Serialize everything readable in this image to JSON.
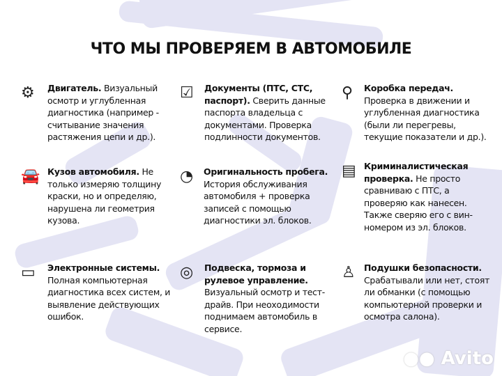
{
  "title": "ЧТО МЫ ПРОВЕРЯЕМ В АВТОМОБИЛЕ",
  "items": [
    {
      "icon": "engine-icon",
      "title": "Двигатель.",
      "text": " Визуальный осмотр и углубленная диагностика (например - считывание значения растяжения цепи и др.)."
    },
    {
      "icon": "checkbox-icon",
      "title": "Документы (ПТС, СТС, паспорт).",
      "text": " Сверить данные паспорта владельца с документами. Проверка подлинности документов."
    },
    {
      "icon": "gearbox-icon",
      "title": "Коробка передач.",
      "text": " Проверка в движении и углубленная диагностика (были ли перегревы, текущие показатели и др.)."
    },
    {
      "icon": "car-body-icon",
      "title": "Кузов автомобиля.",
      "text": " Не только измеряю толщину краски, но и определяю, нарушена ли геометрия кузова."
    },
    {
      "icon": "speedometer-icon",
      "title": "Оригинальность пробега.",
      "text": " История обслуживания автомобиля + проверка записей с помощью диагностики эл. блоков."
    },
    {
      "icon": "certificate-icon",
      "title": "Криминалистическая проверка.",
      "text": " Не просто сравниваю с ПТС, а проверяю как нанесен. Также сверяю его с вин-номером из эл. блоков."
    },
    {
      "icon": "battery-icon",
      "title": "Электронные системы.",
      "text": " Полная компьютерная диагностика всех систем, и выявление действующих ошибок."
    },
    {
      "icon": "brake-disc-icon",
      "title": "Подвеска, тормоза и рулевое управление.",
      "text": " Визуальный осмотр и тест-драйв. При неоходимости поднимаем автомобиль в сервисе."
    },
    {
      "icon": "airbag-icon",
      "title": "Подушки безопасности.",
      "text": " Срабатывали или нет, стоят ли обманки (с помощью компьютерной проверки и осмотра салона)."
    }
  ],
  "watermark": "Avito",
  "colors": {
    "background": "#ffffff",
    "tread": "#e4e4f4",
    "text": "#111111"
  }
}
